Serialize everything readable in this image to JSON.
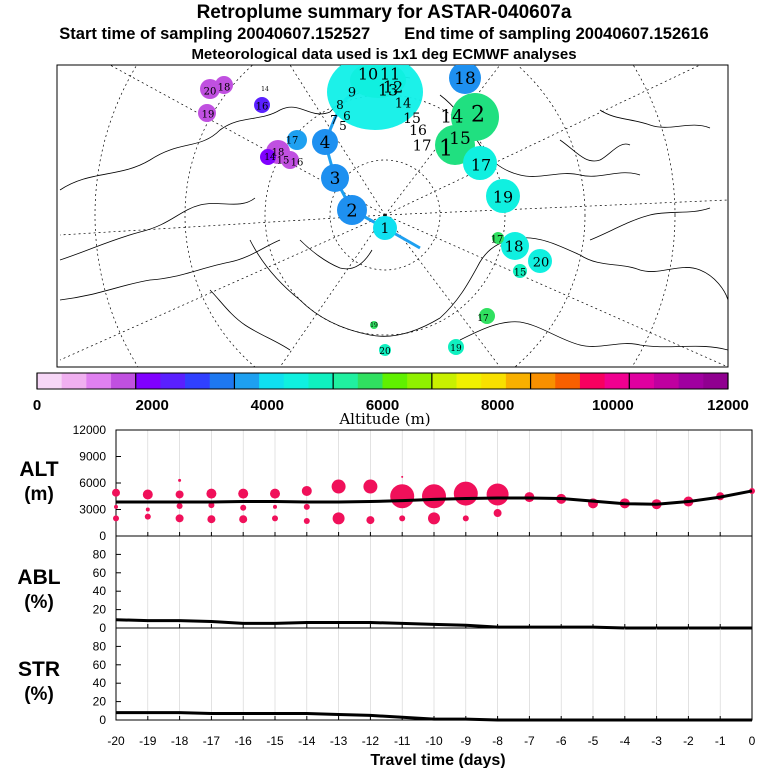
{
  "header": {
    "title": "Retroplume summary for ASTAR-040607a",
    "start_label": "Start time of sampling 20040607.152527",
    "end_label": "End time of sampling 20040607.152616",
    "met_label": "Meteorological data used is 1x1 deg ECMWF analyses"
  },
  "colorbar": {
    "label": "Altitude (m)",
    "ticks": [
      "0",
      "2000",
      "4000",
      "6000",
      "8000",
      "10000",
      "12000"
    ],
    "colors": [
      "#f7d7f7",
      "#f0b0f0",
      "#e080f0",
      "#c050e0",
      "#8000ff",
      "#5a20ff",
      "#3040ff",
      "#1e78f0",
      "#1ea0f0",
      "#10e0f0",
      "#10f0e0",
      "#10f0c0",
      "#20f0a0",
      "#30e060",
      "#60f000",
      "#90f000",
      "#c8f000",
      "#f0f000",
      "#f8e000",
      "#f8b000",
      "#f89000",
      "#f86000",
      "#f80060",
      "#f00090",
      "#e000a0",
      "#c000a0",
      "#a000a0",
      "#900090"
    ]
  },
  "map": {
    "plume_labels": [
      {
        "t": "1",
        "color": "#10e0f0"
      },
      {
        "t": "2",
        "color": "#1e90f0"
      },
      {
        "t": "3",
        "color": "#1e90f0"
      },
      {
        "t": "4",
        "color": "#1e90f0"
      },
      {
        "t": "5",
        "color": "#10d0f0"
      },
      {
        "t": "6",
        "color": "#10e0e0"
      },
      {
        "t": "7",
        "color": "#10e0e0"
      },
      {
        "t": "8",
        "color": "#10e0e0"
      },
      {
        "t": "9",
        "color": "#10e8e8"
      },
      {
        "t": "10",
        "color": "#10f0e8"
      },
      {
        "t": "11",
        "color": "#10f0e8"
      },
      {
        "t": "12",
        "color": "#10f0e8"
      },
      {
        "t": "13",
        "color": "#10f0e8"
      },
      {
        "t": "14",
        "color": "#10e0f0"
      },
      {
        "t": "15",
        "color": "#10e0f0"
      },
      {
        "t": "16",
        "color": "#10e0f0"
      },
      {
        "t": "17",
        "color": "#10e0f0"
      },
      {
        "t": "18",
        "color": "#1e90f0"
      },
      {
        "t": "14",
        "color": "#10f0e0"
      },
      {
        "t": "2",
        "color": "#20e080"
      },
      {
        "t": "1",
        "color": "#20e080"
      },
      {
        "t": "15",
        "color": "#10f0c0"
      },
      {
        "t": "17",
        "color": "#10f0e0"
      },
      {
        "t": "19",
        "color": "#10f0e0"
      },
      {
        "t": "17",
        "color": "#30e060"
      },
      {
        "t": "18",
        "color": "#10f0e0"
      },
      {
        "t": "20",
        "color": "#10f0e0"
      },
      {
        "t": "15",
        "color": "#10f0c0"
      },
      {
        "t": "17",
        "color": "#30e060"
      },
      {
        "t": "20",
        "color": "#10f0c0"
      },
      {
        "t": "19",
        "color": "#10f0c0"
      },
      {
        "t": "19",
        "color": "#30e060"
      },
      {
        "t": "20",
        "color": "#c050e0"
      },
      {
        "t": "18",
        "color": "#c050e0"
      },
      {
        "t": "19",
        "color": "#c050e0"
      },
      {
        "t": "14",
        "color": "#3040ff"
      },
      {
        "t": "16",
        "color": "#8000ff"
      },
      {
        "t": "17",
        "color": "#c050e0"
      },
      {
        "t": "18",
        "color": "#c050e0"
      },
      {
        "t": "15",
        "color": "#c050e0"
      },
      {
        "t": "14",
        "color": "#c050e0"
      },
      {
        "t": "16",
        "color": "#c050e0"
      }
    ]
  },
  "chart_data": [
    {
      "type": "scatter",
      "panel": "ALT",
      "ylabel": "ALT\n(m)",
      "ylabel_line1": "ALT",
      "ylabel_line2": "(m)",
      "ylim": [
        0,
        12000
      ],
      "yticks": [
        "0",
        "3000",
        "6000",
        "9000",
        "12000"
      ],
      "xlim": [
        -20,
        0
      ],
      "line": {
        "x": [
          -20,
          -19,
          -18,
          -17,
          -16,
          -15,
          -14,
          -13,
          -12,
          -11,
          -10,
          -9,
          -8,
          -7,
          -6,
          -5,
          -4,
          -3,
          -2,
          -1,
          0
        ],
        "y": [
          3850,
          3850,
          3850,
          3850,
          3900,
          3900,
          3850,
          3850,
          3900,
          4000,
          4150,
          4250,
          4300,
          4300,
          4250,
          3950,
          3650,
          3600,
          3900,
          4400,
          5100
        ]
      },
      "points": [
        {
          "x": -20,
          "y": 4900,
          "s": 4
        },
        {
          "x": -20,
          "y": 2000,
          "s": 3
        },
        {
          "x": -20,
          "y": 3300,
          "s": 2
        },
        {
          "x": -19,
          "y": 4700,
          "s": 5
        },
        {
          "x": -19,
          "y": 2200,
          "s": 3
        },
        {
          "x": -19,
          "y": 3000,
          "s": 2
        },
        {
          "x": -18,
          "y": 4700,
          "s": 4
        },
        {
          "x": -18,
          "y": 2000,
          "s": 4
        },
        {
          "x": -18,
          "y": 3400,
          "s": 3
        },
        {
          "x": -18,
          "y": 6300,
          "s": 1.5
        },
        {
          "x": -17,
          "y": 4800,
          "s": 5
        },
        {
          "x": -17,
          "y": 1900,
          "s": 4
        },
        {
          "x": -17,
          "y": 3500,
          "s": 3
        },
        {
          "x": -16,
          "y": 4800,
          "s": 5
        },
        {
          "x": -16,
          "y": 1900,
          "s": 4
        },
        {
          "x": -16,
          "y": 3200,
          "s": 3
        },
        {
          "x": -15,
          "y": 4800,
          "s": 5
        },
        {
          "x": -15,
          "y": 2000,
          "s": 3
        },
        {
          "x": -15,
          "y": 3300,
          "s": 2
        },
        {
          "x": -14,
          "y": 5100,
          "s": 5
        },
        {
          "x": -14,
          "y": 1700,
          "s": 3
        },
        {
          "x": -14,
          "y": 3300,
          "s": 3
        },
        {
          "x": -13,
          "y": 5600,
          "s": 7
        },
        {
          "x": -13,
          "y": 2000,
          "s": 6
        },
        {
          "x": -12,
          "y": 5600,
          "s": 7
        },
        {
          "x": -12,
          "y": 1800,
          "s": 4
        },
        {
          "x": -11,
          "y": 4500,
          "s": 12
        },
        {
          "x": -11,
          "y": 2000,
          "s": 3
        },
        {
          "x": -11,
          "y": 6700,
          "s": 1
        },
        {
          "x": -10,
          "y": 4500,
          "s": 12
        },
        {
          "x": -10,
          "y": 2000,
          "s": 6
        },
        {
          "x": -9,
          "y": 4800,
          "s": 12
        },
        {
          "x": -9,
          "y": 2000,
          "s": 3
        },
        {
          "x": -8,
          "y": 4700,
          "s": 11
        },
        {
          "x": -8,
          "y": 2600,
          "s": 4
        },
        {
          "x": -7,
          "y": 4400,
          "s": 5
        },
        {
          "x": -6,
          "y": 4200,
          "s": 5
        },
        {
          "x": -5,
          "y": 3700,
          "s": 5
        },
        {
          "x": -4,
          "y": 3700,
          "s": 5
        },
        {
          "x": -3,
          "y": 3600,
          "s": 5
        },
        {
          "x": -2,
          "y": 3900,
          "s": 5
        },
        {
          "x": -1,
          "y": 4500,
          "s": 4
        },
        {
          "x": 0,
          "y": 5100,
          "s": 3
        }
      ]
    },
    {
      "type": "line",
      "panel": "ABL",
      "ylabel": "ABL\n(%)",
      "ylabel_line1": "ABL",
      "ylabel_line2": "(%)",
      "ylim": [
        0,
        100
      ],
      "yticks": [
        "0",
        "20",
        "40",
        "60",
        "80"
      ],
      "x": [
        -20,
        -19,
        -18,
        -17,
        -16,
        -15,
        -14,
        -13,
        -12,
        -11,
        -10,
        -9,
        -8,
        -7,
        -6,
        -5,
        -4,
        -3,
        -2,
        -1,
        0
      ],
      "y": [
        9,
        8,
        8,
        7,
        5,
        5,
        6,
        6,
        6,
        5,
        4,
        3,
        1,
        1,
        1,
        1,
        0,
        0,
        0,
        0,
        0
      ]
    },
    {
      "type": "line",
      "panel": "STR",
      "ylabel": "STR\n(%)",
      "ylabel_line1": "STR",
      "ylabel_line2": "(%)",
      "ylim": [
        0,
        100
      ],
      "yticks": [
        "0",
        "20",
        "40",
        "60",
        "80"
      ],
      "xlabel": "Travel time (days)",
      "xticks": [
        "-20",
        "-19",
        "-18",
        "-17",
        "-16",
        "-15",
        "-14",
        "-13",
        "-12",
        "-11",
        "-10",
        "-9",
        "-8",
        "-7",
        "-6",
        "-5",
        "-4",
        "-3",
        "-2",
        "-1",
        "0"
      ],
      "x": [
        -20,
        -19,
        -18,
        -17,
        -16,
        -15,
        -14,
        -13,
        -12,
        -11,
        -10,
        -9,
        -8,
        -7,
        -6,
        -5,
        -4,
        -3,
        -2,
        -1,
        0
      ],
      "y": [
        8,
        8,
        8,
        7,
        7,
        7,
        7,
        6,
        5,
        3,
        1,
        1,
        0,
        0,
        0,
        0,
        0,
        0,
        0,
        0,
        0
      ]
    }
  ]
}
